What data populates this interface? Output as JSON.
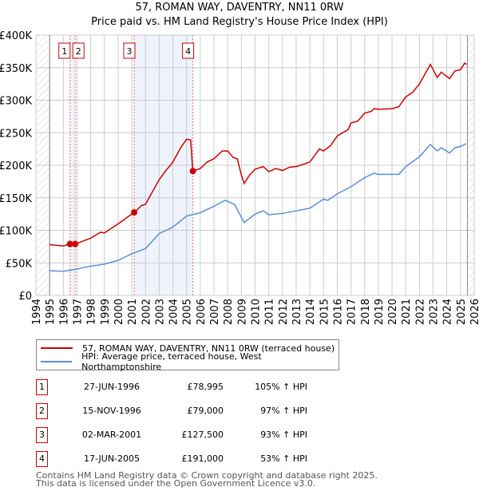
{
  "chart_data": {
    "type": "line",
    "title": "57, ROMAN WAY, DAVENTRY, NN11 0RW",
    "subtitle": "Price paid vs. HM Land Registry's House Price Index (HPI)",
    "xlim": [
      1994,
      2026
    ],
    "ylim": [
      0,
      400000
    ],
    "y_ticks": [
      "£0",
      "£50K",
      "£100K",
      "£150K",
      "£200K",
      "£250K",
      "£300K",
      "£350K",
      "£400K"
    ],
    "y_tick_values": [
      0,
      50000,
      100000,
      150000,
      200000,
      250000,
      300000,
      350000,
      400000
    ],
    "x_ticks": [
      "1994",
      "1995",
      "1996",
      "1997",
      "1998",
      "1999",
      "2000",
      "2001",
      "2002",
      "2003",
      "2004",
      "2005",
      "2006",
      "2007",
      "2008",
      "2009",
      "2010",
      "2011",
      "2012",
      "2013",
      "2014",
      "2015",
      "2016",
      "2017",
      "2018",
      "2019",
      "2020",
      "2021",
      "2022",
      "2023",
      "2024",
      "2025",
      "2026"
    ],
    "grid": true,
    "series": [
      {
        "name": "57, ROMAN WAY, DAVENTRY, NN11 0RW (terraced house)",
        "color": "#cc0000",
        "x": [
          1995,
          1996,
          1996.5,
          1997,
          1998,
          1998.7,
          1999,
          2000,
          2001,
          2001.2,
          2001.7,
          2002,
          2003,
          2003.5,
          2004,
          2004.6,
          2005,
          2005.3,
          2005.45,
          2006,
          2006.5,
          2007,
          2007.6,
          2008,
          2008.4,
          2008.7,
          2009,
          2009.2,
          2009.6,
          2010,
          2010.6,
          2011,
          2011.5,
          2012,
          2012.5,
          2013,
          2013.6,
          2014,
          2014.7,
          2015,
          2015.5,
          2016,
          2016.8,
          2017,
          2017.5,
          2018,
          2018.5,
          2018.7,
          2019,
          2020,
          2020.5,
          2021,
          2021.5,
          2022,
          2022.8,
          2023.3,
          2023.6,
          2024.2,
          2024.6,
          2025,
          2025.3,
          2025.45
        ],
        "y": [
          78,
          76,
          79,
          80,
          88,
          97,
          96,
          110,
          125,
          127.5,
          138,
          140,
          178,
          192,
          205,
          228,
          240,
          239,
          191,
          195,
          205,
          210,
          222,
          222,
          212,
          210,
          185,
          172,
          185,
          194,
          198,
          190,
          195,
          192,
          197,
          198,
          202,
          205,
          225,
          222,
          230,
          245,
          255,
          265,
          268,
          280,
          283,
          287,
          286,
          287,
          290,
          305,
          312,
          325,
          355,
          335,
          343,
          333,
          345,
          347,
          357,
          355
        ]
      },
      {
        "name": "HPI: Average price, terraced house, West Northamptonshire",
        "color": "#5b8fd4",
        "x": [
          1995,
          1996,
          1997,
          1998,
          1999,
          2000,
          2001,
          2002,
          2003,
          2004,
          2005,
          2006,
          2007,
          2007.8,
          2008.5,
          2009.2,
          2010,
          2010.6,
          2011,
          2012,
          2013,
          2014,
          2015,
          2015.3,
          2016,
          2017,
          2018,
          2018.7,
          2019,
          2020,
          2020.5,
          2021,
          2022,
          2022.8,
          2023.3,
          2023.6,
          2024.2,
          2024.6,
          2025,
          2025.4
        ],
        "y": [
          38,
          37,
          40.5,
          45,
          48,
          54,
          64,
          72,
          95,
          105,
          122,
          127,
          137,
          146,
          140,
          112,
          125,
          130,
          124,
          126,
          130,
          134,
          148,
          146,
          156,
          167,
          181,
          188,
          186,
          186,
          186,
          198,
          213,
          232,
          222,
          227,
          219,
          227,
          229,
          233
        ]
      }
    ],
    "y_units": "thousands GBP",
    "sales": [
      {
        "label": "1",
        "x": 1996.49,
        "y": 78.995,
        "date": "27-JUN-1996",
        "price": "£78,995",
        "pct": "105% ↑ HPI"
      },
      {
        "label": "2",
        "x": 1996.87,
        "y": 79.0,
        "date": "15-NOV-1996",
        "price": "£79,000",
        "pct": "97% ↑ HPI"
      },
      {
        "label": "3",
        "x": 2001.17,
        "y": 127.5,
        "date": "02-MAR-2001",
        "price": "£127,500",
        "pct": "93% ↑ HPI"
      },
      {
        "label": "4",
        "x": 2005.46,
        "y": 191.0,
        "date": "17-JUN-2005",
        "price": "£191,000",
        "pct": "53% ↑ HPI"
      }
    ]
  },
  "footer": {
    "line1": "Contains HM Land Registry data © Crown copyright and database right 2025.",
    "line2": "This data is licensed under the Open Government Licence v3.0."
  }
}
